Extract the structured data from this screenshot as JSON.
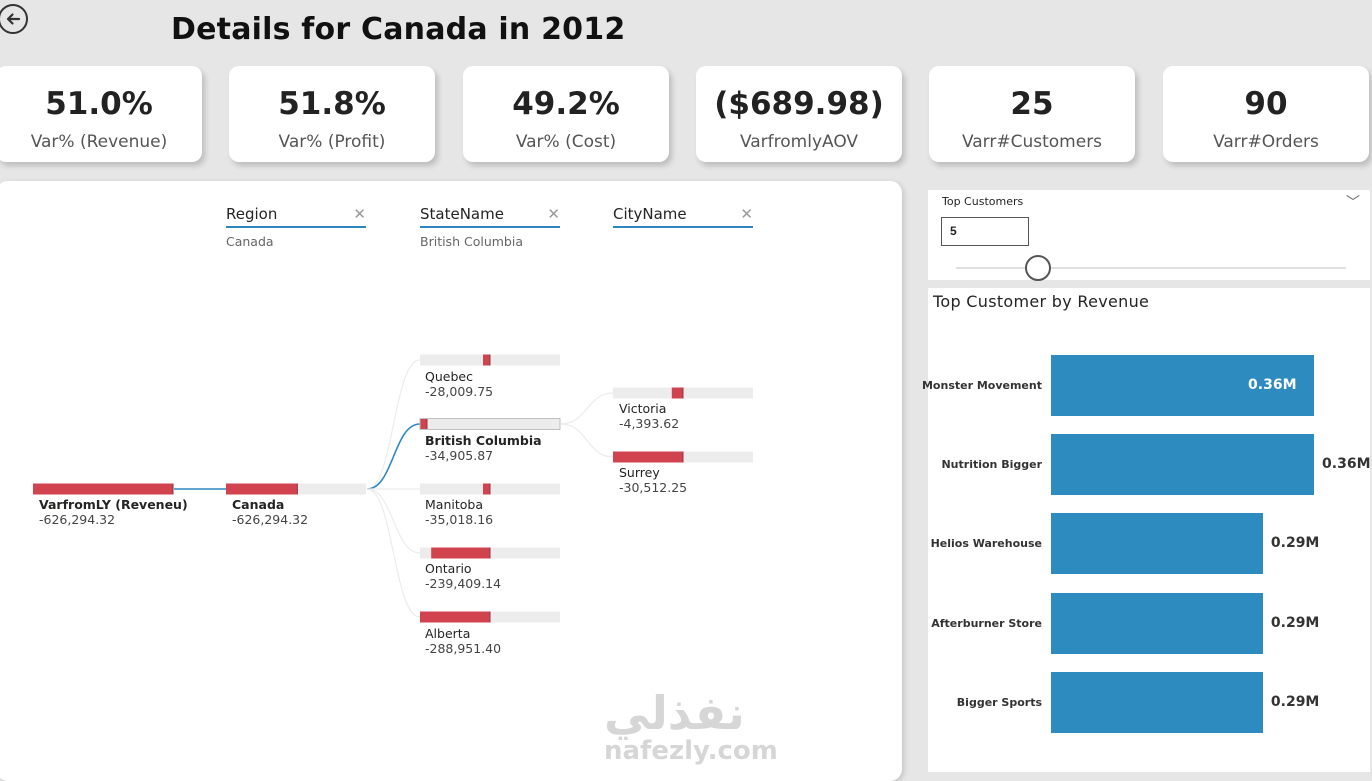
{
  "header": {
    "title": "Details for Canada in 2012"
  },
  "kpis": [
    {
      "value": "51.0%",
      "label": "Var% (Revenue)"
    },
    {
      "value": "51.8%",
      "label": "Var% (Profit)"
    },
    {
      "value": "49.2%",
      "label": "Var% (Cost)"
    },
    {
      "value": "($689.98)",
      "label": "VarfromlyAOV"
    },
    {
      "value": "25",
      "label": "Varr#Customers"
    },
    {
      "value": "90",
      "label": "Varr#Orders"
    }
  ],
  "tree": {
    "levels": [
      {
        "name": "Region",
        "selected": "Canada"
      },
      {
        "name": "StateName",
        "selected": "British Columbia"
      },
      {
        "name": "CityName",
        "selected": ""
      }
    ],
    "root": {
      "name": "VarfromLY (Reveneu)",
      "value": "-626,294.32",
      "share": 1.0
    },
    "region": {
      "name": "Canada",
      "value": "-626,294.32",
      "share": 0.51
    },
    "states": [
      {
        "name": "Quebec",
        "value": "-28,009.75",
        "share": 0.04
      },
      {
        "name": "British Columbia",
        "value": "-34,905.87",
        "share": 0.05
      },
      {
        "name": "Manitoba",
        "value": "-35,018.16",
        "share": 0.05
      },
      {
        "name": "Ontario",
        "value": "-239,409.14",
        "share": 0.42
      },
      {
        "name": "Alberta",
        "value": "-288,951.40",
        "share": 0.5
      }
    ],
    "cities": [
      {
        "name": "Victoria",
        "value": "-4,393.62",
        "share": 0.08
      },
      {
        "name": "Surrey",
        "value": "-30,512.25",
        "share": 0.5
      }
    ],
    "colors": {
      "bar": "#d0434f",
      "track": "#ececec",
      "link": "#2e86c1"
    }
  },
  "slicer": {
    "title": "Top Customers",
    "value": "5",
    "level": 0.2
  },
  "chart_data": {
    "type": "bar",
    "title": "Top Customer by Revenue",
    "categories": [
      "Monster Movement",
      "Nutrition Bigger",
      "Helios Warehouse",
      "Afterburner Store",
      "Bigger Sports"
    ],
    "values": [
      0.36,
      0.36,
      0.29,
      0.29,
      0.29
    ],
    "value_labels": [
      "0.36M",
      "0.36M",
      "0.29M",
      "0.29M",
      "0.29M"
    ],
    "xlim": [
      0,
      0.375
    ],
    "color": "#2e8bc0"
  },
  "watermark": {
    "arabic": "نفذلي",
    "latin": "nafezly.com"
  }
}
